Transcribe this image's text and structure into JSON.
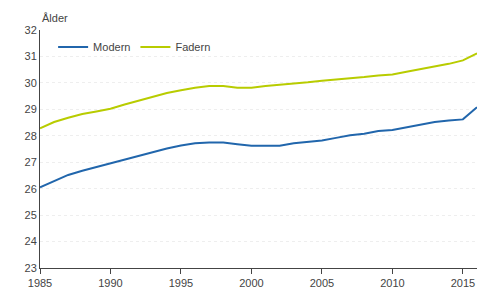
{
  "chart_data": {
    "type": "line",
    "ylabel": "Ålder",
    "x": [
      1985,
      1986,
      1987,
      1988,
      1989,
      1990,
      1991,
      1992,
      1993,
      1994,
      1995,
      1996,
      1997,
      1998,
      1999,
      2000,
      2001,
      2002,
      2003,
      2004,
      2005,
      2006,
      2007,
      2008,
      2009,
      2010,
      2011,
      2012,
      2013,
      2014,
      2015,
      2016
    ],
    "series": [
      {
        "name": "Modern",
        "color": "#2166ac",
        "values": [
          26.05,
          26.3,
          26.52,
          26.68,
          26.82,
          26.95,
          27.08,
          27.22,
          27.38,
          27.52,
          27.63,
          27.72,
          27.75,
          27.75,
          27.68,
          27.62,
          27.62,
          27.62,
          27.72,
          27.78,
          27.82,
          27.92,
          28.02,
          28.08,
          28.18,
          28.22,
          28.32,
          28.42,
          28.52,
          28.58,
          28.62,
          29.08
        ]
      },
      {
        "name": "Fadern",
        "color": "#b8cc00",
        "values": [
          28.28,
          28.52,
          28.68,
          28.82,
          28.92,
          29.02,
          29.18,
          29.32,
          29.48,
          29.62,
          29.72,
          29.82,
          29.88,
          29.88,
          29.82,
          29.82,
          29.88,
          29.92,
          29.98,
          30.02,
          30.08,
          30.12,
          30.18,
          30.22,
          30.28,
          30.32,
          30.42,
          30.52,
          30.62,
          30.72,
          30.85,
          31.12
        ]
      }
    ],
    "xlim": [
      1985,
      2016
    ],
    "xticks": [
      1985,
      1990,
      1995,
      2000,
      2005,
      2010,
      2015
    ],
    "ylim": [
      23,
      32
    ],
    "yticks": [
      23,
      24,
      25,
      26,
      27,
      28,
      29,
      30,
      31,
      32
    ],
    "grid": true,
    "legend": "upper left"
  }
}
